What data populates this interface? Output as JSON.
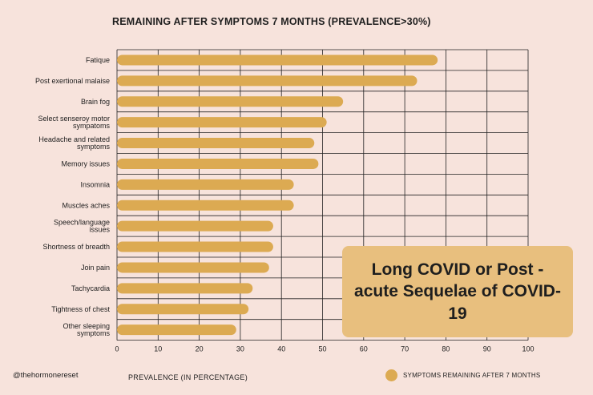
{
  "chart_data": {
    "type": "bar",
    "orientation": "horizontal",
    "title": "REMAINING AFTER SYMPTOMS 7 MONTHS (PREVALENCE>30%)",
    "xlabel": "PREVALENCE (IN PERCENTAGE)",
    "ylabel": "",
    "xlim": [
      0,
      100
    ],
    "x_ticks": [
      "0",
      "10",
      "20",
      "30",
      "40",
      "50",
      "60",
      "70",
      "80",
      "90",
      "100"
    ],
    "grid": true,
    "legend_position": "bottom-right",
    "categories": [
      [
        "Fatique"
      ],
      [
        "Post exertional malaise"
      ],
      [
        "Brain fog"
      ],
      [
        "Select senseroy motor",
        "sympatoms"
      ],
      [
        "Headache and related",
        "symptoms"
      ],
      [
        "Memory issues"
      ],
      [
        "Insomnia"
      ],
      [
        "Muscles aches"
      ],
      [
        "Speech/language",
        "issues"
      ],
      [
        "Shortness of breadth"
      ],
      [
        "Join pain"
      ],
      [
        "Tachycardia"
      ],
      [
        "Tightness of chest"
      ],
      [
        "Other sleeping",
        "symptoms"
      ]
    ],
    "series": [
      {
        "name": "SYMPTOMS REMAINING AFTER 7 MONTHS",
        "color": "#dcaa52",
        "values": [
          78,
          73,
          55,
          51,
          48,
          49,
          43,
          43,
          38,
          38,
          37,
          33,
          32,
          29
        ]
      }
    ]
  },
  "callout": {
    "text": "Long COVID or Post - acute Sequelae of COVID-19"
  },
  "footer": {
    "handle": "@thehormonereset"
  },
  "colors": {
    "background": "#f7e3dc",
    "bar": "#dcaa52",
    "callout": "#e8bf7e",
    "grid": "#222222"
  }
}
